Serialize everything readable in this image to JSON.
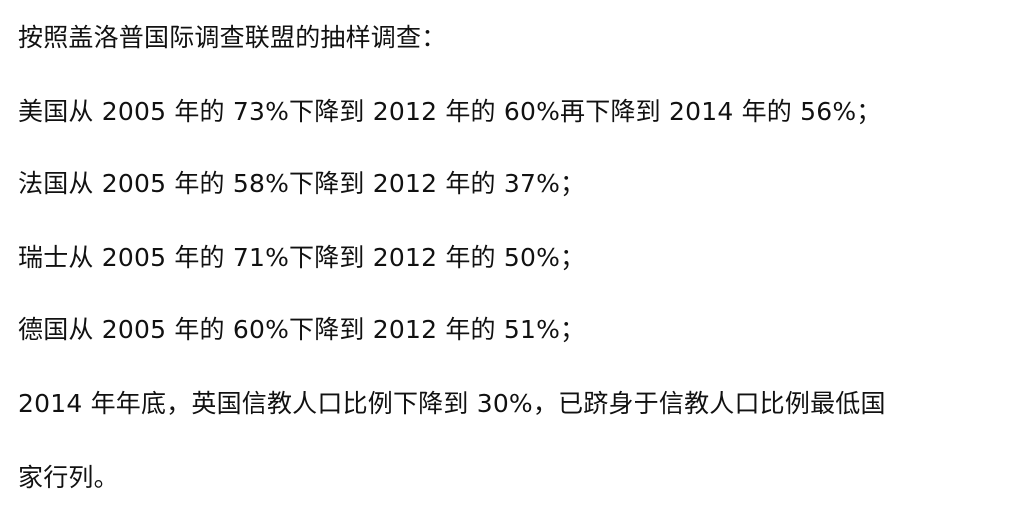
{
  "document": {
    "lines": [
      "按照盖洛普国际调查联盟的抽样调查：",
      "美国从 2005 年的 73%下降到 2012 年的 60%再下降到 2014 年的 56%；",
      "法国从 2005 年的 58%下降到 2012 年的 37%；",
      "瑞士从 2005 年的 71%下降到 2012 年的 50%；",
      "德国从 2005 年的 60%下降到 2012 年的 51%；",
      "2014 年年底，英国信教人口比例下降到 30%，已跻身于信教人口比例最低国",
      "家行列。"
    ]
  }
}
